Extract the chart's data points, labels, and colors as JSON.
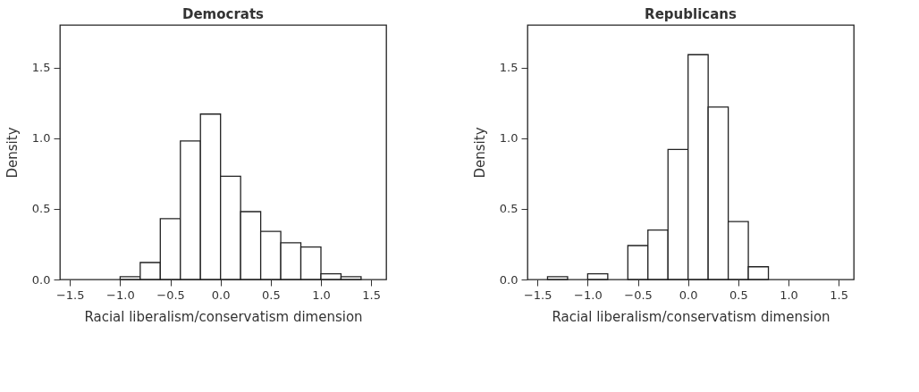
{
  "chart_data": [
    {
      "type": "histogram",
      "title": "Democrats",
      "xlabel": "Racial liberalism/conservatism dimension",
      "ylabel": "Density",
      "bins": [
        -1.0,
        -0.8,
        -0.6,
        -0.4,
        -0.2,
        0.0,
        0.2,
        0.4,
        0.6,
        0.8,
        1.0,
        1.2,
        1.4
      ],
      "values": [
        0.02,
        0.12,
        0.43,
        0.98,
        1.17,
        0.73,
        0.48,
        0.34,
        0.26,
        0.23,
        0.04,
        0.02
      ],
      "color": "#ffffff",
      "xlim": [
        -1.6,
        1.65
      ],
      "ylim": [
        0,
        1.8
      ],
      "xticks": [
        {
          "value": -1.5,
          "label": "−1.5"
        },
        {
          "value": -1.0,
          "label": "−1.0"
        },
        {
          "value": -0.5,
          "label": "−0.5"
        },
        {
          "value": 0,
          "label": "0.0"
        },
        {
          "value": 0.5,
          "label": "0.5"
        },
        {
          "value": 1.0,
          "label": "1.0"
        },
        {
          "value": 1.5,
          "label": "1.5"
        }
      ],
      "yticks": [
        {
          "value": 0,
          "label": "0.0"
        },
        {
          "value": 0.5,
          "label": "0.5"
        },
        {
          "value": 1.0,
          "label": "1.0"
        },
        {
          "value": 1.5,
          "label": "1.5"
        }
      ],
      "grid": false
    },
    {
      "type": "histogram",
      "title": "Republicans",
      "xlabel": "Racial liberalism/conservatism dimension",
      "ylabel": "Density",
      "bins": [
        -1.4,
        -1.2,
        -1.0,
        -0.8,
        -0.6,
        -0.4,
        -0.2,
        0.0,
        0.2,
        0.4,
        0.6,
        0.8
      ],
      "values": [
        0.02,
        0.0,
        0.04,
        0.0,
        0.24,
        0.35,
        0.92,
        1.59,
        1.22,
        0.41,
        0.09
      ],
      "color": "#ffffff",
      "xlim": [
        -1.6,
        1.65
      ],
      "ylim": [
        0,
        1.8
      ],
      "xticks": [
        {
          "value": -1.5,
          "label": "−1.5"
        },
        {
          "value": -1.0,
          "label": "−1.0"
        },
        {
          "value": -0.5,
          "label": "−0.5"
        },
        {
          "value": 0,
          "label": "0.0"
        },
        {
          "value": 0.5,
          "label": "0.5"
        },
        {
          "value": 1.0,
          "label": "1.0"
        },
        {
          "value": 1.5,
          "label": "1.5"
        }
      ],
      "yticks": [
        {
          "value": 0,
          "label": "0.0"
        },
        {
          "value": 0.5,
          "label": "0.5"
        },
        {
          "value": 1.0,
          "label": "1.0"
        },
        {
          "value": 1.5,
          "label": "1.5"
        }
      ],
      "grid": false
    }
  ]
}
